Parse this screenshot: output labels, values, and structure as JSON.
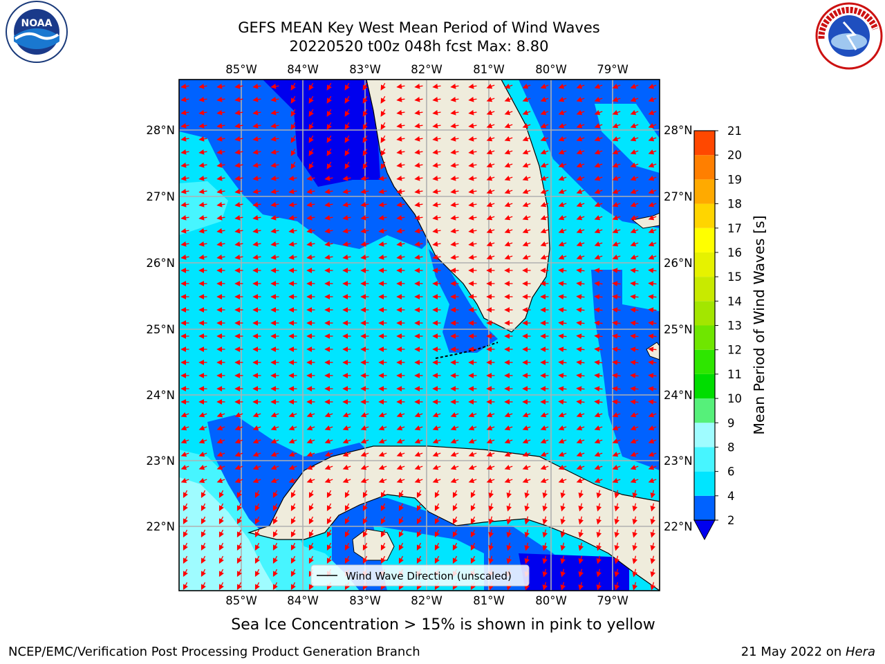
{
  "title": {
    "line1": "GEFS MEAN Key West Mean Period of Wind Waves",
    "line2": "20220520 t00z 048h fcst   Max: 8.80"
  },
  "map": {
    "lon_labels": [
      "85°W",
      "84°W",
      "83°W",
      "82°W",
      "81°W",
      "80°W",
      "79°W"
    ],
    "lat_labels": [
      "28°N",
      "27°N",
      "26°N",
      "25°N",
      "24°N",
      "23°N",
      "22°N"
    ],
    "legend_text": "Wind Wave Direction (unscaled)",
    "arrow_color": "#ff0000",
    "land_color": "#efecdc",
    "gridline_color": "#b0b0b0"
  },
  "colorbar": {
    "label": "Mean Period of Wind Waves [s]",
    "tick_labels": [
      "2",
      "4",
      "6",
      "8",
      "9",
      "10",
      "11",
      "12",
      "13",
      "14",
      "15",
      "16",
      "17",
      "18",
      "19",
      "20",
      "21"
    ],
    "colors": [
      "#0062ff",
      "#00e5ff",
      "#47f5ff",
      "#9ffcff",
      "#56f07a",
      "#00dd00",
      "#2ee600",
      "#6fe600",
      "#a3e600",
      "#c8ea00",
      "#e6f200",
      "#ffff00",
      "#ffd500",
      "#ffaa00",
      "#ff7f00",
      "#ff4800",
      "#ff1400"
    ],
    "under_color": "#0000ee"
  },
  "legend_colors": {
    "period_2_4": "#0062ff",
    "period_below_2": "#0000ee",
    "period_4_6": "#00e5ff",
    "period_6_8": "#47f5ff",
    "period_8_9": "#9ffcff"
  },
  "footer": {
    "subtitle": "Sea Ice Concentration > 15% is shown in pink to yellow",
    "credit": "NCEP/EMC/Verification Post Processing Product Generation Branch",
    "date_prefix": "21 May 2022 on ",
    "host": "Hera"
  },
  "logos": {
    "noaa_text": "NOAA",
    "nws_text": "NATIONAL WEATHER SERVICE"
  }
}
